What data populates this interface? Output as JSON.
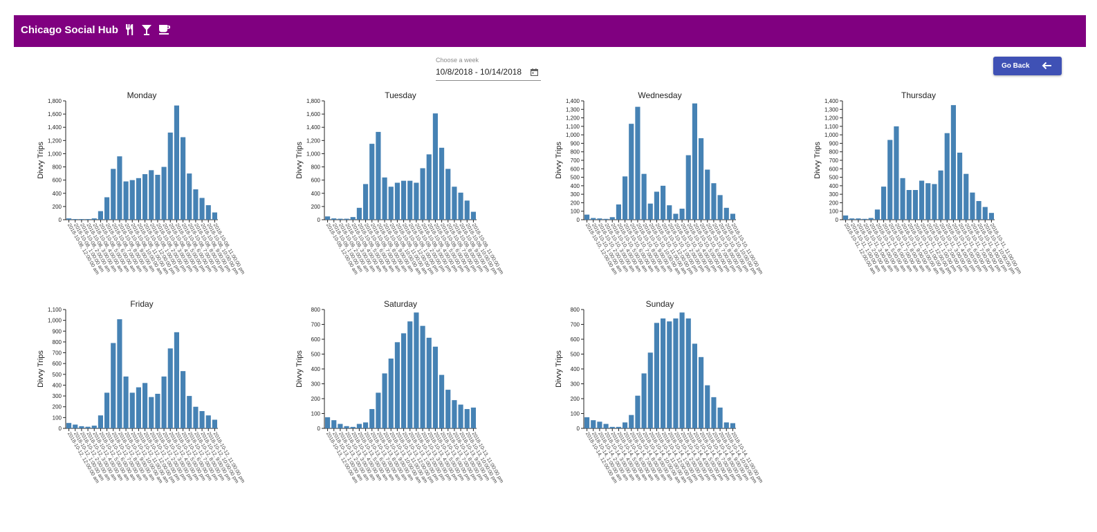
{
  "app": {
    "title": "Chicago Social Hub",
    "icons": [
      "restaurant-icon",
      "bar-icon",
      "cafe-icon"
    ],
    "accent_color": "#800080"
  },
  "week_picker": {
    "label": "Choose a week",
    "value": "10/8/2018 - 10/14/2018",
    "icon": "calendar-icon"
  },
  "go_back": {
    "label": "Go Back",
    "icon": "arrow-left-icon",
    "color": "#3f51b5"
  },
  "chart_data": [
    {
      "type": "bar",
      "title": "Monday",
      "ylabel": "Divvy Trips",
      "date": "2018-10-08",
      "ylim": [
        0,
        1800
      ],
      "yticks": [
        "0",
        "200",
        "400",
        "600",
        "800",
        "1,000",
        "1,200",
        "1,400",
        "1,600",
        "1,800"
      ],
      "xticks": [
        "2018-10-08, 12:00:00 am",
        "2018-10-08, 1:00:00 am",
        "2018-10-08, 2:00:00 am",
        "2018-10-08, 3:00:00 am",
        "2018-10-08, 4:00:00 am",
        "2018-10-08, 5:00:00 am",
        "2018-10-08, 6:00:00 am",
        "2018-10-08, 7:00:00 am",
        "2018-10-08, 8:00:00 am",
        "2018-10-08, 9:00:00 am",
        "2018-10-08, 10:00:00 am",
        "2018-10-08, 11:00:00 am",
        "2018-10-08, 12:00:00 pm",
        "2018-10-08, 1:00:00 pm",
        "2018-10-08, 2:00:00 pm",
        "2018-10-08, 3:00:00 pm",
        "2018-10-08, 4:00:00 pm",
        "2018-10-08, 5:00:00 pm",
        "2018-10-08, 6:00:00 pm",
        "2018-10-08, 7:00:00 pm",
        "2018-10-08, 8:00:00 pm",
        "2018-10-08, 9:00:00 pm",
        "2018-10-08, 10:00:00 pm",
        "2018-10-08, 11:00:00 pm"
      ],
      "values": [
        20,
        10,
        10,
        10,
        20,
        130,
        340,
        770,
        960,
        580,
        600,
        630,
        690,
        750,
        680,
        800,
        1320,
        1730,
        1250,
        700,
        460,
        330,
        220,
        110
      ]
    },
    {
      "type": "bar",
      "title": "Tuesday",
      "ylabel": "Divvy Trips",
      "date": "2018-10-09",
      "ylim": [
        0,
        1800
      ],
      "yticks": [
        "0",
        "200",
        "400",
        "600",
        "800",
        "1,000",
        "1,200",
        "1,400",
        "1,600",
        "1,800"
      ],
      "xticks": [
        "2018-10-09, 12:00:00 am",
        "2018-10-09, 1:00:00 am",
        "2018-10-09, 2:00:00 am",
        "2018-10-09, 3:00:00 am",
        "2018-10-09, 4:00:00 am",
        "2018-10-09, 5:00:00 am",
        "2018-10-09, 6:00:00 am",
        "2018-10-09, 7:00:00 am",
        "2018-10-09, 8:00:00 am",
        "2018-10-09, 9:00:00 am",
        "2018-10-09, 10:00:00 am",
        "2018-10-09, 11:00:00 am",
        "2018-10-09, 12:00:00 pm",
        "2018-10-09, 1:00:00 pm",
        "2018-10-09, 2:00:00 pm",
        "2018-10-09, 3:00:00 pm",
        "2018-10-09, 4:00:00 pm",
        "2018-10-09, 5:00:00 pm",
        "2018-10-09, 6:00:00 pm",
        "2018-10-09, 7:00:00 pm",
        "2018-10-09, 8:00:00 pm",
        "2018-10-09, 9:00:00 pm",
        "2018-10-09, 10:00:00 pm",
        "2018-10-09, 11:00:00 pm"
      ],
      "values": [
        50,
        20,
        15,
        15,
        40,
        180,
        540,
        1150,
        1330,
        640,
        500,
        560,
        590,
        590,
        560,
        780,
        990,
        1610,
        1090,
        770,
        500,
        410,
        290,
        120
      ]
    },
    {
      "type": "bar",
      "title": "Wednesday",
      "ylabel": "Divvy Trips",
      "date": "2018-10-10",
      "ylim": [
        0,
        1400
      ],
      "yticks": [
        "0",
        "100",
        "200",
        "300",
        "400",
        "500",
        "600",
        "700",
        "800",
        "900",
        "1,000",
        "1,100",
        "1,200",
        "1,300",
        "1,400"
      ],
      "xticks": [
        "2018-10-10, 12:00:00 am",
        "2018-10-10, 1:00:00 am",
        "2018-10-10, 2:00:00 am",
        "2018-10-10, 3:00:00 am",
        "2018-10-10, 4:00:00 am",
        "2018-10-10, 5:00:00 am",
        "2018-10-10, 6:00:00 am",
        "2018-10-10, 7:00:00 am",
        "2018-10-10, 8:00:00 am",
        "2018-10-10, 9:00:00 am",
        "2018-10-10, 10:00:00 am",
        "2018-10-10, 11:00:00 am",
        "2018-10-10, 12:00:00 pm",
        "2018-10-10, 1:00:00 pm",
        "2018-10-10, 2:00:00 pm",
        "2018-10-10, 3:00:00 pm",
        "2018-10-10, 4:00:00 pm",
        "2018-10-10, 5:00:00 pm",
        "2018-10-10, 6:00:00 pm",
        "2018-10-10, 7:00:00 pm",
        "2018-10-10, 8:00:00 pm",
        "2018-10-10, 9:00:00 pm",
        "2018-10-10, 10:00:00 pm",
        "2018-10-10, 11:00:00 pm"
      ],
      "values": [
        60,
        20,
        15,
        10,
        30,
        180,
        510,
        1130,
        1330,
        540,
        190,
        330,
        400,
        170,
        70,
        130,
        760,
        1370,
        960,
        590,
        430,
        290,
        140,
        70
      ]
    },
    {
      "type": "bar",
      "title": "Thursday",
      "ylabel": "Divvy Trips",
      "date": "2018-10-11",
      "ylim": [
        0,
        1400
      ],
      "yticks": [
        "0",
        "100",
        "200",
        "300",
        "400",
        "500",
        "600",
        "700",
        "800",
        "900",
        "1,000",
        "1,100",
        "1,200",
        "1,300",
        "1,400"
      ],
      "xticks": [
        "2018-10-11, 12:00:00 am",
        "2018-10-11, 1:00:00 am",
        "2018-10-11, 2:00:00 am",
        "2018-10-11, 3:00:00 am",
        "2018-10-11, 4:00:00 am",
        "2018-10-11, 5:00:00 am",
        "2018-10-11, 6:00:00 am",
        "2018-10-11, 7:00:00 am",
        "2018-10-11, 8:00:00 am",
        "2018-10-11, 9:00:00 am",
        "2018-10-11, 10:00:00 am",
        "2018-10-11, 11:00:00 am",
        "2018-10-11, 12:00:00 pm",
        "2018-10-11, 1:00:00 pm",
        "2018-10-11, 2:00:00 pm",
        "2018-10-11, 3:00:00 pm",
        "2018-10-11, 4:00:00 pm",
        "2018-10-11, 5:00:00 pm",
        "2018-10-11, 6:00:00 pm",
        "2018-10-11, 7:00:00 pm",
        "2018-10-11, 8:00:00 pm",
        "2018-10-11, 9:00:00 pm",
        "2018-10-11, 10:00:00 pm",
        "2018-10-11, 11:00:00 pm"
      ],
      "values": [
        50,
        15,
        15,
        10,
        20,
        120,
        390,
        940,
        1100,
        490,
        350,
        350,
        460,
        430,
        420,
        580,
        1020,
        1350,
        790,
        540,
        320,
        220,
        150,
        80
      ]
    },
    {
      "type": "bar",
      "title": "Friday",
      "ylabel": "Divvy Trips",
      "date": "2018-10-12",
      "ylim": [
        0,
        1100
      ],
      "yticks": [
        "0",
        "100",
        "200",
        "300",
        "400",
        "500",
        "600",
        "700",
        "800",
        "900",
        "1,000",
        "1,100"
      ],
      "xticks": [
        "2018-10-12, 12:00:00 am",
        "2018-10-12, 1:00:00 am",
        "2018-10-12, 2:00:00 am",
        "2018-10-12, 3:00:00 am",
        "2018-10-12, 4:00:00 am",
        "2018-10-12, 5:00:00 am",
        "2018-10-12, 6:00:00 am",
        "2018-10-12, 7:00:00 am",
        "2018-10-12, 8:00:00 am",
        "2018-10-12, 9:00:00 am",
        "2018-10-12, 10:00:00 am",
        "2018-10-12, 11:00:00 am",
        "2018-10-12, 12:00:00 pm",
        "2018-10-12, 1:00:00 pm",
        "2018-10-12, 2:00:00 pm",
        "2018-10-12, 3:00:00 pm",
        "2018-10-12, 4:00:00 pm",
        "2018-10-12, 5:00:00 pm",
        "2018-10-12, 6:00:00 pm",
        "2018-10-12, 7:00:00 pm",
        "2018-10-12, 8:00:00 pm",
        "2018-10-12, 9:00:00 pm",
        "2018-10-12, 10:00:00 pm",
        "2018-10-12, 11:00:00 pm"
      ],
      "values": [
        50,
        35,
        20,
        15,
        25,
        120,
        330,
        790,
        1010,
        480,
        330,
        380,
        420,
        290,
        320,
        480,
        740,
        890,
        530,
        300,
        200,
        160,
        120,
        80
      ]
    },
    {
      "type": "bar",
      "title": "Saturday",
      "ylabel": "Divvy Trips",
      "date": "2018-10-13",
      "ylim": [
        0,
        800
      ],
      "yticks": [
        "0",
        "100",
        "200",
        "300",
        "400",
        "500",
        "600",
        "700",
        "800"
      ],
      "xticks": [
        "2018-10-13, 12:00:00 am",
        "2018-10-13, 1:00:00 am",
        "2018-10-13, 2:00:00 am",
        "2018-10-13, 3:00:00 am",
        "2018-10-13, 4:00:00 am",
        "2018-10-13, 5:00:00 am",
        "2018-10-13, 6:00:00 am",
        "2018-10-13, 7:00:00 am",
        "2018-10-13, 8:00:00 am",
        "2018-10-13, 9:00:00 am",
        "2018-10-13, 10:00:00 am",
        "2018-10-13, 11:00:00 am",
        "2018-10-13, 12:00:00 pm",
        "2018-10-13, 1:00:00 pm",
        "2018-10-13, 2:00:00 pm",
        "2018-10-13, 3:00:00 pm",
        "2018-10-13, 4:00:00 pm",
        "2018-10-13, 5:00:00 pm",
        "2018-10-13, 6:00:00 pm",
        "2018-10-13, 7:00:00 pm",
        "2018-10-13, 8:00:00 pm",
        "2018-10-13, 9:00:00 pm",
        "2018-10-13, 10:00:00 pm",
        "2018-10-13, 11:00:00 pm"
      ],
      "values": [
        75,
        55,
        30,
        15,
        10,
        30,
        40,
        130,
        240,
        370,
        470,
        580,
        640,
        720,
        780,
        690,
        610,
        550,
        360,
        260,
        190,
        160,
        130,
        140
      ]
    },
    {
      "type": "bar",
      "title": "Sunday",
      "ylabel": "Divvy Trips",
      "date": "2018-10-14",
      "ylim": [
        0,
        800
      ],
      "yticks": [
        "0",
        "100",
        "200",
        "300",
        "400",
        "500",
        "600",
        "700",
        "800"
      ],
      "xticks": [
        "2018-10-14, 12:00:00 am",
        "2018-10-14, 1:00:00 am",
        "2018-10-14, 2:00:00 am",
        "2018-10-14, 3:00:00 am",
        "2018-10-14, 4:00:00 am",
        "2018-10-14, 5:00:00 am",
        "2018-10-14, 6:00:00 am",
        "2018-10-14, 7:00:00 am",
        "2018-10-14, 8:00:00 am",
        "2018-10-14, 9:00:00 am",
        "2018-10-14, 10:00:00 am",
        "2018-10-14, 11:00:00 am",
        "2018-10-14, 12:00:00 pm",
        "2018-10-14, 1:00:00 pm",
        "2018-10-14, 2:00:00 pm",
        "2018-10-14, 3:00:00 pm",
        "2018-10-14, 4:00:00 pm",
        "2018-10-14, 5:00:00 pm",
        "2018-10-14, 6:00:00 pm",
        "2018-10-14, 7:00:00 pm",
        "2018-10-14, 8:00:00 pm",
        "2018-10-14, 9:00:00 pm",
        "2018-10-14, 10:00:00 pm",
        "2018-10-14, 11:00:00 pm"
      ],
      "values": [
        75,
        55,
        45,
        30,
        10,
        10,
        40,
        90,
        220,
        370,
        510,
        710,
        740,
        720,
        740,
        780,
        740,
        570,
        480,
        290,
        210,
        140,
        40,
        35
      ]
    }
  ]
}
